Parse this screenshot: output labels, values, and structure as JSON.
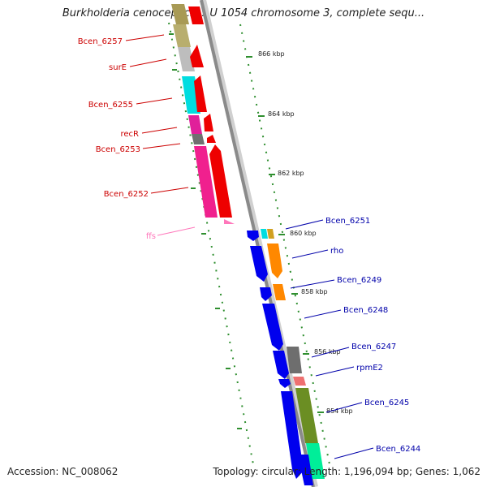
{
  "title": "Burkholderia cenocepacia AU 1054 chromosome 3, complete sequ...",
  "footer": {
    "accession": "Accession: NC_008062",
    "summary": "Topology: circular; Length: 1,196,094 bp; Genes: 1,062"
  },
  "colors": {
    "backbone": "#8c8c8c",
    "tick": "#2f8f2f",
    "reverse_label": "#cc0000",
    "forward_label": "#0000aa",
    "rna_label": "#ff77bb"
  },
  "kbp_markers": [
    "866 kbp",
    "864 kbp",
    "862 kbp",
    "860 kbp",
    "858 kbp",
    "856 kbp",
    "854 kbp"
  ],
  "reverse_genes": [
    "Bcen_6257",
    "surE",
    "Bcen_6255",
    "recR",
    "Bcen_6253",
    "Bcen_6252"
  ],
  "rna_genes": [
    "ffs"
  ],
  "forward_genes": [
    "Bcen_6251",
    "rho",
    "Bcen_6249",
    "Bcen_6248",
    "Bcen_6247",
    "rpmE2",
    "Bcen_6245",
    "Bcen_6244"
  ]
}
